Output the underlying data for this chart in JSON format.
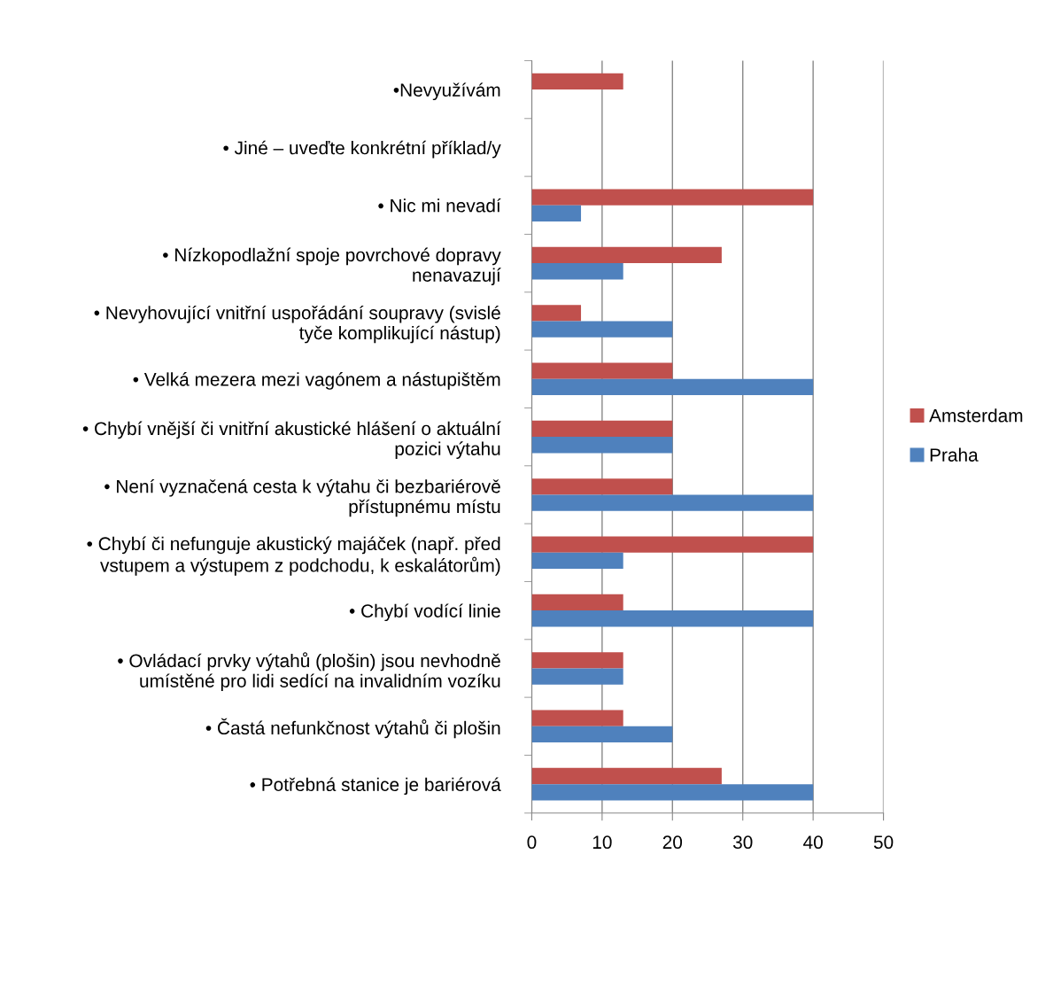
{
  "chart_data": {
    "type": "bar",
    "orientation": "horizontal",
    "categories": [
      "•Nevyužívám",
      "• Jiné – uveďte konkrétní příklad/y",
      "• Nic mi nevadí",
      "• Nízkopodlažní spoje povrchové dopravy\nnenavazují",
      "• Nevyhovující vnitřní uspořádání soupravy (svislé\ntyče komplikující nástup)",
      "• Velká mezera mezi vagónem a nástupištěm",
      "• Chybí vnější či vnitřní akustické hlášení o aktuální\npozici výtahu",
      "• Není vyznačená cesta k výtahu či bezbariérově\npřístupnému místu",
      "• Chybí či nefunguje akustický majáček (např. před\nvstupem a výstupem z podchodu, k eskalátorům)",
      "• Chybí vodící linie",
      "• Ovládací prvky výtahů (plošin) jsou nevhodně\numístěné pro lidi sedící na invalidním vozíku",
      "• Častá nefunkčnost výtahů či plošin",
      "• Potřebná stanice je bariérová"
    ],
    "series": [
      {
        "name": "Amsterdam",
        "color": "#c0504d",
        "values": [
          13,
          null,
          40,
          27,
          7,
          20,
          20,
          20,
          40,
          13,
          13,
          13,
          27
        ]
      },
      {
        "name": "Praha",
        "color": "#4f81bd",
        "values": [
          null,
          null,
          7,
          13,
          20,
          40,
          20,
          40,
          13,
          40,
          13,
          20,
          40
        ]
      }
    ],
    "xlim": [
      0,
      50
    ],
    "xticks": [
      0,
      10,
      20,
      30,
      40,
      50
    ],
    "grid": "x",
    "legend": "right"
  }
}
